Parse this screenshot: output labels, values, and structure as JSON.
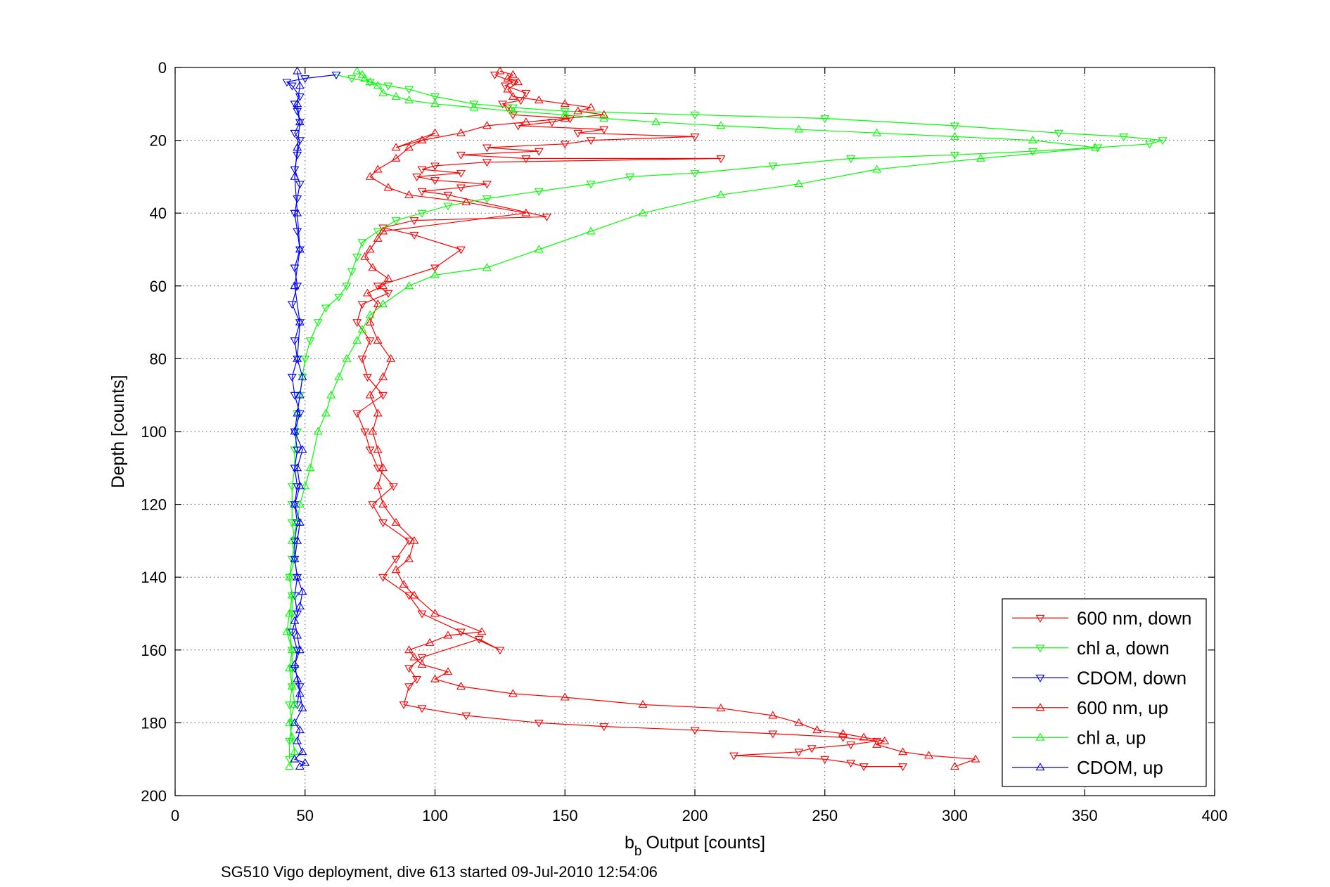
{
  "chart_data": {
    "type": "scatter",
    "xlabel": "Output [counts]",
    "xlabel_prefix": "b",
    "xlabel_subscript": "b",
    "ylabel": "Depth [counts]",
    "caption": "SG510 Vigo deployment, dive 613 started 09-Jul-2010 12:54:06",
    "xlim": [
      0,
      400
    ],
    "ylim": [
      0,
      200
    ],
    "y_reversed": true,
    "grid": true,
    "x_ticks": [
      0,
      50,
      100,
      150,
      200,
      250,
      300,
      350,
      400
    ],
    "y_ticks": [
      0,
      20,
      40,
      60,
      80,
      100,
      120,
      140,
      160,
      180,
      200
    ],
    "legend": {
      "position": "bottom-right"
    },
    "series": [
      {
        "name": "600 nm, down",
        "color": "#ff0000",
        "marker": "triangle-down",
        "x": [
          123,
          130,
          127,
          135,
          133,
          126,
          128,
          130,
          152,
          145,
          132,
          165,
          155,
          200,
          160,
          150,
          120,
          140,
          110,
          135,
          210,
          120,
          100,
          95,
          110,
          93,
          100,
          120,
          110,
          95,
          105,
          143,
          92,
          80,
          92,
          110,
          100,
          78,
          82,
          72,
          70,
          75,
          72,
          74,
          80,
          70,
          73,
          75,
          78,
          84,
          76,
          80,
          90,
          85,
          80,
          90,
          95,
          110,
          125,
          117,
          95,
          90,
          93,
          90,
          88,
          95,
          112,
          140,
          165,
          200,
          230,
          257,
          270,
          260,
          245,
          240,
          215,
          250,
          260,
          265,
          280
        ],
        "y": [
          2,
          4,
          5,
          7,
          9,
          10,
          11,
          13,
          14,
          15,
          16,
          17,
          18,
          19,
          20,
          21,
          22,
          23,
          24,
          25,
          25,
          26,
          27,
          28,
          29,
          30,
          31,
          32,
          33,
          34,
          35,
          41,
          42,
          44,
          46,
          50,
          55,
          60,
          62,
          65,
          70,
          75,
          80,
          85,
          90,
          95,
          100,
          105,
          110,
          115,
          120,
          125,
          130,
          135,
          140,
          145,
          150,
          155,
          160,
          157,
          162,
          165,
          168,
          170,
          175,
          176,
          178,
          180,
          181,
          182,
          183,
          184,
          185,
          186,
          187,
          188,
          189,
          190,
          191,
          192,
          192
        ]
      },
      {
        "name": "chl a, down",
        "color": "#00ff00",
        "marker": "triangle-down",
        "x": [
          62,
          68,
          75,
          82,
          90,
          100,
          115,
          130,
          150,
          200,
          250,
          300,
          340,
          365,
          380,
          375,
          355,
          330,
          300,
          260,
          230,
          200,
          175,
          160,
          140,
          120,
          105,
          95,
          85,
          78,
          72,
          70,
          68,
          66,
          63,
          58,
          55,
          52,
          50,
          49,
          48,
          47,
          47,
          46,
          46,
          45,
          45,
          45,
          46,
          45,
          44,
          45,
          45,
          44,
          45,
          45,
          45,
          44,
          45,
          44,
          44
        ],
        "y": [
          2,
          3,
          4,
          5,
          6,
          8,
          10,
          11,
          12,
          13,
          14,
          16,
          18,
          19,
          20,
          21,
          22,
          23,
          24,
          25,
          27,
          29,
          30,
          32,
          34,
          36,
          38,
          40,
          42,
          45,
          48,
          52,
          56,
          60,
          63,
          66,
          70,
          75,
          80,
          85,
          90,
          95,
          100,
          105,
          110,
          115,
          120,
          125,
          130,
          135,
          140,
          145,
          150,
          155,
          160,
          165,
          170,
          175,
          180,
          185,
          190
        ]
      },
      {
        "name": "CDOM, down",
        "color": "#0000ff",
        "marker": "triangle-down",
        "x": [
          62,
          50,
          43,
          45,
          48,
          46,
          47,
          48,
          46,
          48,
          47,
          46,
          48,
          47,
          46,
          47,
          48,
          46,
          47,
          45,
          48,
          46,
          47,
          45,
          46,
          48,
          46,
          47,
          46,
          47,
          46,
          47,
          46,
          46,
          47,
          46,
          47,
          45,
          47,
          46,
          48,
          47
        ],
        "y": [
          2,
          3,
          4,
          5,
          8,
          10,
          12,
          15,
          18,
          20,
          24,
          28,
          32,
          36,
          40,
          45,
          50,
          55,
          60,
          65,
          70,
          75,
          80,
          85,
          90,
          95,
          100,
          105,
          110,
          115,
          120,
          125,
          130,
          135,
          140,
          145,
          150,
          155,
          160,
          165,
          170,
          175
        ]
      },
      {
        "name": "600 nm, up",
        "color": "#ff0000",
        "marker": "triangle-up",
        "x": [
          300,
          308,
          290,
          280,
          270,
          273,
          265,
          257,
          247,
          240,
          230,
          210,
          180,
          150,
          130,
          110,
          100,
          105,
          95,
          92,
          90,
          98,
          105,
          118,
          100,
          92,
          88,
          85,
          90,
          92,
          85,
          80,
          78,
          80,
          78,
          76,
          78,
          75,
          80,
          83,
          78,
          75,
          78,
          74,
          80,
          82,
          76,
          73,
          75,
          78,
          80,
          135,
          112,
          90,
          82,
          75,
          78,
          85,
          90,
          95,
          100,
          85,
          95,
          110,
          120,
          135,
          150,
          165,
          155,
          160,
          150,
          140,
          130,
          128,
          132,
          128,
          130,
          125
        ],
        "y": [
          192,
          190,
          189,
          188,
          186,
          185,
          184,
          183,
          182,
          180,
          178,
          176,
          175,
          173,
          172,
          170,
          168,
          166,
          164,
          162,
          160,
          158,
          156,
          155,
          150,
          145,
          142,
          138,
          135,
          130,
          125,
          120,
          115,
          110,
          105,
          100,
          95,
          90,
          85,
          80,
          75,
          70,
          65,
          62,
          60,
          58,
          55,
          52,
          50,
          47,
          45,
          40,
          37,
          35,
          33,
          30,
          28,
          25,
          22,
          20,
          18,
          22,
          20,
          18,
          16,
          15,
          14,
          13,
          12,
          11,
          10,
          9,
          8,
          6,
          4,
          3,
          2,
          1
        ]
      },
      {
        "name": "chl a, up",
        "color": "#00ff00",
        "marker": "triangle-up",
        "x": [
          44,
          46,
          45,
          44,
          46,
          45,
          44,
          45,
          43,
          44,
          45,
          44,
          46,
          45,
          47,
          48,
          50,
          52,
          55,
          58,
          60,
          63,
          66,
          70,
          72,
          75,
          80,
          90,
          100,
          120,
          140,
          160,
          180,
          210,
          240,
          270,
          310,
          354,
          330,
          300,
          270,
          240,
          210,
          185,
          165,
          150,
          130,
          115,
          100,
          90,
          85,
          80,
          78,
          75,
          73,
          72,
          70
        ],
        "y": [
          192,
          188,
          184,
          180,
          175,
          170,
          165,
          160,
          155,
          150,
          145,
          140,
          135,
          130,
          125,
          120,
          115,
          110,
          100,
          95,
          90,
          85,
          80,
          75,
          72,
          68,
          65,
          60,
          57,
          55,
          50,
          45,
          40,
          35,
          32,
          28,
          25,
          22,
          20,
          19,
          18,
          17,
          16,
          15,
          14,
          13,
          12,
          11,
          10,
          9,
          8,
          7,
          5,
          4,
          3,
          2,
          1
        ]
      },
      {
        "name": "CDOM, up",
        "color": "#0000ff",
        "marker": "triangle-up",
        "x": [
          48,
          50,
          46,
          49,
          47,
          48,
          46,
          49,
          48,
          47,
          46,
          48,
          47,
          46,
          48,
          49,
          47,
          46,
          47,
          48,
          46,
          48,
          47,
          49,
          46,
          47,
          48,
          49,
          47,
          48,
          46,
          48,
          47,
          46,
          47,
          48,
          47,
          48,
          47
        ],
        "y": [
          192,
          191,
          190,
          188,
          185,
          182,
          180,
          176,
          172,
          168,
          164,
          160,
          156,
          152,
          148,
          144,
          140,
          135,
          130,
          125,
          120,
          115,
          110,
          105,
          100,
          95,
          90,
          85,
          80,
          70,
          60,
          50,
          40,
          30,
          22,
          15,
          10,
          5,
          1
        ]
      }
    ]
  }
}
